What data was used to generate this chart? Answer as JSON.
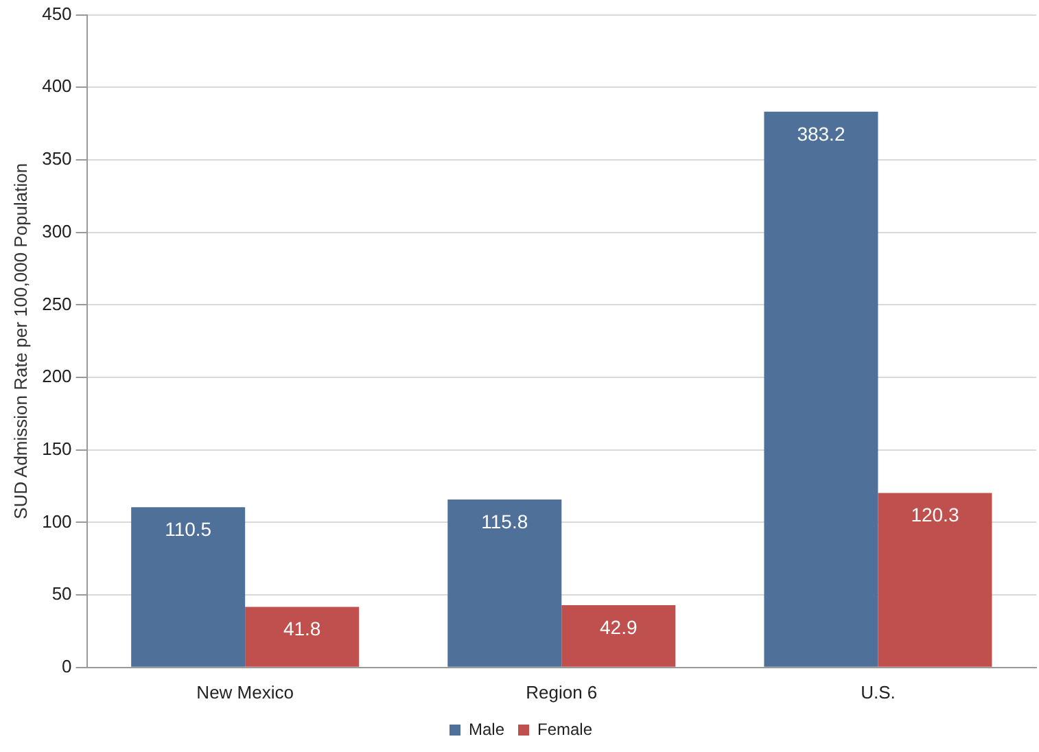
{
  "chart_data": {
    "type": "bar",
    "ylabel": "SUD Admission Rate per 100,000 Population",
    "categories": [
      "New Mexico",
      "Region 6",
      "U.S."
    ],
    "series": [
      {
        "name": "Male",
        "color": "#4f7199",
        "values": [
          110.5,
          115.8,
          383.2
        ]
      },
      {
        "name": "Female",
        "color": "#c0504d",
        "values": [
          41.8,
          42.9,
          120.3
        ]
      }
    ],
    "ylim": [
      0,
      450
    ],
    "yticks": [
      0,
      50,
      100,
      150,
      200,
      250,
      300,
      350,
      400,
      450
    ],
    "grid": "y",
    "legend": "bottom",
    "data_labels": true
  }
}
